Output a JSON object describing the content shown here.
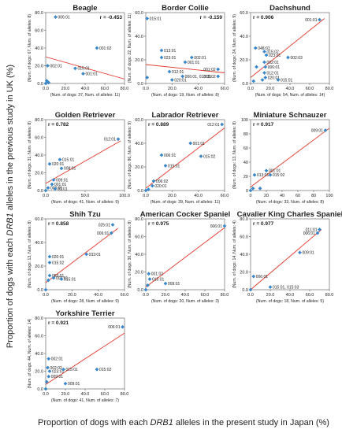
{
  "figure": {
    "ylabel_pre": "Proportion of dogs with each ",
    "ylabel_em": "DRB1",
    "ylabel_post": " alleles in the previous study in UK (%)",
    "xlabel_pre": "Proportion of dogs with each ",
    "xlabel_em": "DRB1",
    "xlabel_post": " alleles in the present study in Japan (%)"
  },
  "colors": {
    "point": "#3a86c8",
    "fit": "#e0392b",
    "frame": "#555555",
    "text": "#222222"
  },
  "chart_data": [
    {
      "type": "scatter",
      "title": "Beagle",
      "r_label": "r = -0.453",
      "ylabel": "(Num. of dogs: 67, Num. of alleles: 8)",
      "xlabel": "(Num. of dogs: 37, Num. of alleles: 11)",
      "xlim": [
        0,
        80
      ],
      "ylim": [
        0,
        80
      ],
      "xticks": [
        0,
        20,
        40,
        60,
        80
      ],
      "yticks": [
        0,
        20,
        40,
        60,
        80
      ],
      "tick_decimals": 1,
      "points": [
        {
          "x": 10,
          "y": 75,
          "label": "006:01"
        },
        {
          "x": 52,
          "y": 40,
          "label": "001:02"
        },
        {
          "x": 2,
          "y": 20,
          "label": "002:01"
        },
        {
          "x": 30,
          "y": 17,
          "label": "015:01"
        },
        {
          "x": 38,
          "y": 11,
          "label": "001:01"
        },
        {
          "x": 1,
          "y": 3,
          "label": ""
        },
        {
          "x": 3,
          "y": 1,
          "label": ""
        },
        {
          "x": 0,
          "y": 0,
          "label": ""
        }
      ],
      "fit": [
        [
          0,
          30
        ],
        [
          80,
          5
        ]
      ]
    },
    {
      "type": "scatter",
      "title": "Border Collie",
      "r_label": "r = -0.159",
      "ylabel": "(Num. of dogs: 22, Num. of alleles: 11)",
      "xlabel": "(Num. of dogs: 19, Num. of alleles: 8)",
      "xlim": [
        0,
        60
      ],
      "ylim": [
        0,
        60
      ],
      "xticks": [
        0,
        20,
        40,
        60
      ],
      "yticks": [
        0,
        20,
        40,
        60
      ],
      "tick_decimals": 1,
      "points": [
        {
          "x": 1,
          "y": 55,
          "label": "015:01"
        },
        {
          "x": 12,
          "y": 28,
          "label": "013:01"
        },
        {
          "x": 12,
          "y": 22,
          "label": "023:01"
        },
        {
          "x": 35,
          "y": 22,
          "label": "002:01"
        },
        {
          "x": 30,
          "y": 18,
          "label": "001:01"
        },
        {
          "x": 55,
          "y": 12,
          "label": "001:02"
        },
        {
          "x": 18,
          "y": 10,
          "label": "012:01"
        },
        {
          "x": 28,
          "y": 6,
          "label": "006:01, 018:01"
        },
        {
          "x": 55,
          "y": 6,
          "label": "015:02"
        },
        {
          "x": 20,
          "y": 3,
          "label": "020:01"
        },
        {
          "x": 1,
          "y": 5,
          "label": ""
        }
      ],
      "fit": [
        [
          0,
          16
        ],
        [
          60,
          9
        ]
      ]
    },
    {
      "type": "scatter",
      "title": "Dachshund",
      "r_label": "r = 0.906",
      "ylabel": "(Num. of dogs: 24, Num. of alleles: 9)",
      "xlabel": "(Num. of dogs: 54, Num. of alleles: 14)",
      "xlim": [
        0,
        80
      ],
      "ylim": [
        0,
        60
      ],
      "xticks": [
        0,
        20,
        40,
        60,
        80
      ],
      "yticks": [
        0,
        20,
        40,
        60
      ],
      "tick_decimals": 1,
      "points": [
        {
          "x": 70,
          "y": 54,
          "label": "001:01"
        },
        {
          "x": 5,
          "y": 30,
          "label": "048:01"
        },
        {
          "x": 14,
          "y": 27,
          "label": "015:02"
        },
        {
          "x": 16,
          "y": 24,
          "label": "023:01"
        },
        {
          "x": 38,
          "y": 22,
          "label": "002:03"
        },
        {
          "x": 14,
          "y": 18,
          "label": "002:01"
        },
        {
          "x": 15,
          "y": 14,
          "label": "006:01"
        },
        {
          "x": 14,
          "y": 9,
          "label": "012:01"
        },
        {
          "x": 15,
          "y": 5,
          "label": "020:01"
        },
        {
          "x": 28,
          "y": 3,
          "label": "015:01"
        },
        {
          "x": 12,
          "y": 3,
          "label": ""
        },
        {
          "x": 3,
          "y": 2,
          "label": ""
        },
        {
          "x": 6,
          "y": 14,
          "label": ""
        }
      ],
      "fit": [
        [
          0,
          5
        ],
        [
          75,
          55
        ]
      ]
    },
    {
      "type": "scatter",
      "title": "Golden Retriever",
      "r_label": "r = 0.782",
      "ylabel": "(Num. of dogs: 31, Num. of alleles: 8)",
      "xlabel": "(Num. of dogs: 41, Num. of alleles: 9)",
      "xlim": [
        0,
        100
      ],
      "ylim": [
        0,
        80
      ],
      "xticks": [
        0,
        50,
        100
      ],
      "yticks": [
        0,
        20,
        40,
        60,
        80
      ],
      "tick_decimals": 1,
      "points": [
        {
          "x": 92,
          "y": 58,
          "label": "012:01"
        },
        {
          "x": 18,
          "y": 35,
          "label": "015:01"
        },
        {
          "x": 5,
          "y": 30,
          "label": "020:01"
        },
        {
          "x": 20,
          "y": 25,
          "label": "008:01"
        },
        {
          "x": 10,
          "y": 12,
          "label": "009:01"
        },
        {
          "x": 8,
          "y": 7,
          "label": "001:01"
        },
        {
          "x": 3,
          "y": 3,
          "label": "002:01"
        },
        {
          "x": 12,
          "y": 2,
          "label": "01:01"
        },
        {
          "x": 0,
          "y": 0,
          "label": ""
        }
      ],
      "fit": [
        [
          0,
          8
        ],
        [
          95,
          56
        ]
      ]
    },
    {
      "type": "scatter",
      "title": "Labrador Retriever",
      "r_label": "r = 0.889",
      "ylabel": "(Num. of dogs: 86, Num. of alleles: 9)",
      "xlabel": "(Num. of dogs: 39, Num. of alleles: 11)",
      "xlim": [
        0,
        60
      ],
      "ylim": [
        0,
        60
      ],
      "xticks": [
        0,
        20,
        40,
        60
      ],
      "yticks": [
        0,
        20,
        40,
        60
      ],
      "tick_decimals": 1,
      "points": [
        {
          "x": 58,
          "y": 56,
          "label": "012:01"
        },
        {
          "x": 34,
          "y": 40,
          "label": "001:01"
        },
        {
          "x": 12,
          "y": 30,
          "label": "006:01"
        },
        {
          "x": 42,
          "y": 29,
          "label": "015:02"
        },
        {
          "x": 15,
          "y": 21,
          "label": "015:01"
        },
        {
          "x": 6,
          "y": 8,
          "label": "006:02"
        },
        {
          "x": 5,
          "y": 4,
          "label": "020:01"
        },
        {
          "x": 2,
          "y": 1,
          "label": ""
        },
        {
          "x": 0,
          "y": 0,
          "label": ""
        }
      ],
      "fit": [
        [
          0,
          2
        ],
        [
          60,
          53
        ]
      ]
    },
    {
      "type": "scatter",
      "title": "Miniature Schnauzer",
      "r_label": "r = 0.917",
      "ylabel": "(Num. of dogs: 13, Num. of alleles: 8)",
      "xlabel": "(Num. of dogs: 33, Num. of alleles: 8)",
      "xlim": [
        0,
        100
      ],
      "ylim": [
        0,
        100
      ],
      "xticks": [
        0,
        20,
        40,
        60,
        80,
        100
      ],
      "yticks": [
        0,
        20,
        40,
        60,
        80,
        100
      ],
      "tick_decimals": 0,
      "points": [
        {
          "x": 95,
          "y": 85,
          "label": "009:01"
        },
        {
          "x": 20,
          "y": 28,
          "label": "001:01"
        },
        {
          "x": 5,
          "y": 22,
          "label": "013:01"
        },
        {
          "x": 25,
          "y": 22,
          "label": "015:02"
        },
        {
          "x": 3,
          "y": 3,
          "label": ""
        },
        {
          "x": 12,
          "y": 3,
          "label": ""
        },
        {
          "x": 0,
          "y": 0,
          "label": ""
        }
      ],
      "fit": [
        [
          0,
          5
        ],
        [
          100,
          88
        ]
      ]
    },
    {
      "type": "scatter",
      "title": "Shih Tzu",
      "r_label": "r = 0.858",
      "ylabel": "(Num. of dogs: 13, Num. of alleles: 8)",
      "xlabel": "(Num. of dogs: 28, Num. of alleles: 9)",
      "xlim": [
        0,
        60
      ],
      "ylim": [
        0,
        60
      ],
      "xticks": [
        0,
        20,
        40,
        60
      ],
      "yticks": [
        0,
        20,
        40,
        60
      ],
      "tick_decimals": 1,
      "points": [
        {
          "x": 51,
          "y": 55,
          "label": "025:01"
        },
        {
          "x": 50,
          "y": 48,
          "label": "006:01"
        },
        {
          "x": 31,
          "y": 30,
          "label": "033:01"
        },
        {
          "x": 3,
          "y": 23,
          "label": "015:02"
        },
        {
          "x": 3,
          "y": 28,
          "label": "020:01"
        },
        {
          "x": 3,
          "y": 12,
          "label": "053:01"
        },
        {
          "x": 6,
          "y": 10,
          "label": "002:01"
        },
        {
          "x": 12,
          "y": 9,
          "label": "015:01"
        },
        {
          "x": 2,
          "y": 8,
          "label": ""
        },
        {
          "x": 0,
          "y": 0,
          "label": ""
        }
      ],
      "fit": [
        [
          0,
          6
        ],
        [
          55,
          52
        ]
      ]
    },
    {
      "type": "scatter",
      "title": "American Cocker Spaniel",
      "r_label": "r = 0.975",
      "ylabel": "(Num. of dogs: 30, Num. of alleles: 8)",
      "xlabel": "(Num. of dogs: 20, Num. of alleles: 3)",
      "xlim": [
        0,
        80
      ],
      "ylim": [
        0,
        80
      ],
      "xticks": [
        0,
        20,
        40,
        60,
        80
      ],
      "yticks": [
        0,
        20,
        40,
        60,
        80
      ],
      "tick_decimals": 1,
      "points": [
        {
          "x": 80,
          "y": 72,
          "label": "006:01"
        },
        {
          "x": 3,
          "y": 18,
          "label": "001:02"
        },
        {
          "x": 4,
          "y": 12,
          "label": "015:01"
        },
        {
          "x": 20,
          "y": 7,
          "label": "009:01"
        },
        {
          "x": 2,
          "y": 5,
          "label": ""
        },
        {
          "x": 0,
          "y": 0,
          "label": ""
        }
      ],
      "fit": [
        [
          0,
          3
        ],
        [
          80,
          70
        ]
      ]
    },
    {
      "type": "scatter",
      "title": "Cavalier King Charles Spaniel",
      "r_label": "r = 0.977",
      "ylabel": "(Num. of dogs: 14, Num. of alleles: 4)",
      "xlabel": "(Num. of dogs: 18, Num. of alleles: 5)",
      "xlim": [
        0,
        80
      ],
      "ylim": [
        0,
        80
      ],
      "xticks": [
        0,
        20,
        40,
        60,
        80
      ],
      "yticks": [
        0,
        20,
        40,
        60,
        80
      ],
      "tick_decimals": 1,
      "points": [
        {
          "x": 70,
          "y": 68,
          "label": "011:01"
        },
        {
          "x": 68,
          "y": 64,
          "label": "006:01"
        },
        {
          "x": 50,
          "y": 42,
          "label": "009:01"
        },
        {
          "x": 3,
          "y": 15,
          "label": "006:01"
        },
        {
          "x": 20,
          "y": 3,
          "label": "015:01, 015:03"
        },
        {
          "x": 0,
          "y": 0,
          "label": ""
        }
      ],
      "fit": [
        [
          0,
          0
        ],
        [
          72,
          68
        ]
      ]
    },
    {
      "type": "scatter",
      "title": "Yorkshire Terrier",
      "r_label": "r = 0.921",
      "ylabel": "(Num. of dogs: 44, Num. of alleles: 14)",
      "xlabel": "(Num. of dogs: 41, Num. of alleles: 7)",
      "xlim": [
        0,
        80
      ],
      "ylim": [
        0,
        80
      ],
      "xticks": [
        0,
        20,
        40,
        60,
        80
      ],
      "yticks": [
        0,
        20,
        40,
        60,
        80
      ],
      "tick_decimals": 1,
      "points": [
        {
          "x": 78,
          "y": 70,
          "label": "006:01"
        },
        {
          "x": 3,
          "y": 34,
          "label": "002:01"
        },
        {
          "x": 2,
          "y": 24,
          "label": "002:02"
        },
        {
          "x": 4,
          "y": 20,
          "label": "023:01"
        },
        {
          "x": 3,
          "y": 14,
          "label": "009:01"
        },
        {
          "x": 18,
          "y": 22,
          "label": "015:01"
        },
        {
          "x": 52,
          "y": 22,
          "label": "015:02"
        },
        {
          "x": 20,
          "y": 6,
          "label": "009:01"
        },
        {
          "x": 1,
          "y": 8,
          "label": ""
        },
        {
          "x": 0,
          "y": 0,
          "label": ""
        }
      ],
      "fit": [
        [
          0,
          5
        ],
        [
          80,
          63
        ]
      ]
    }
  ]
}
